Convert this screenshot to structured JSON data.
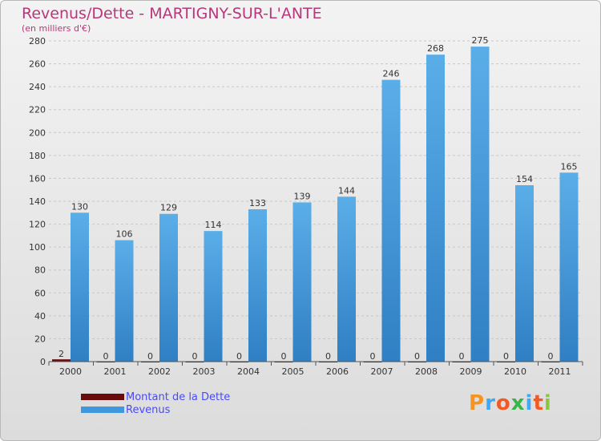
{
  "header": {
    "title": "Revenus/Dette - MARTIGNY-SUR-L'ANTE",
    "subtitle": "(en milliers d'€)"
  },
  "chart_data": {
    "type": "bar",
    "categories": [
      "2000",
      "2001",
      "2002",
      "2003",
      "2004",
      "2005",
      "2006",
      "2007",
      "2008",
      "2009",
      "2010",
      "2011"
    ],
    "series": [
      {
        "name": "Montant de la Dette",
        "color": "#6b0c0c",
        "values": [
          2,
          0,
          0,
          0,
          0,
          0,
          0,
          0,
          0,
          0,
          0,
          0
        ]
      },
      {
        "name": "Revenus",
        "color": "#3f97de",
        "values": [
          130,
          106,
          129,
          114,
          133,
          139,
          144,
          246,
          268,
          275,
          154,
          165
        ]
      }
    ],
    "ylim": [
      0,
      280
    ],
    "yticks": [
      0,
      20,
      40,
      60,
      80,
      100,
      120,
      140,
      160,
      180,
      200,
      220,
      240,
      260,
      280
    ],
    "grid": true,
    "legend_position": "bottom-left"
  },
  "legend": {
    "items": [
      {
        "label": "Montant de la Dette",
        "color": "#6b0c0c"
      },
      {
        "label": "Revenus",
        "color": "#3f97de"
      }
    ]
  },
  "logo": {
    "letters": [
      "P",
      "r",
      "o",
      "x",
      "i",
      "t",
      "i"
    ],
    "colors": [
      "#f7931e",
      "#3fa9f5",
      "#f15a24",
      "#39b54a",
      "#3fa9f5",
      "#f15a24",
      "#8cc63f"
    ]
  }
}
